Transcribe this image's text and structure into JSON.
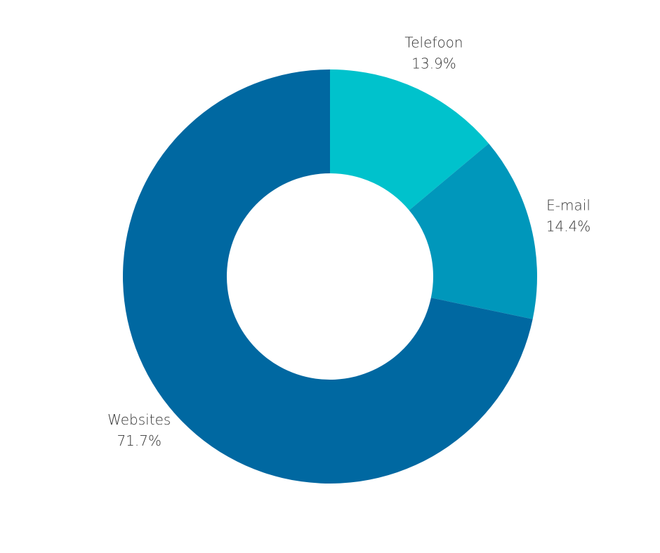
{
  "chart_data": {
    "type": "donut",
    "categories": [
      "Telefoon",
      "E-mail",
      "Websites"
    ],
    "values": [
      13.9,
      14.4,
      71.7
    ],
    "value_labels": [
      "13.9%",
      "14.4%",
      "71.7%"
    ],
    "colors": [
      "#00c2cc",
      "#0097bb",
      "#0068a1"
    ]
  }
}
